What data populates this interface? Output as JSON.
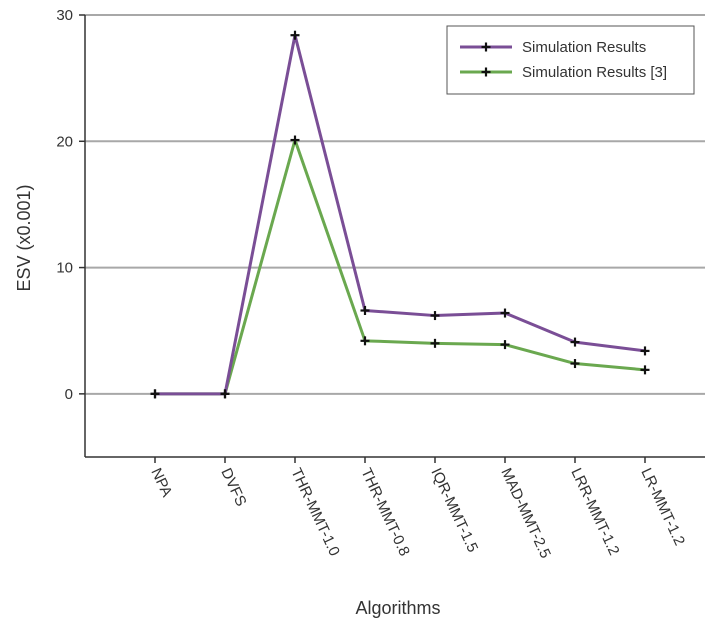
{
  "chart_data": {
    "type": "line",
    "title": "",
    "xlabel": "Algorithms",
    "ylabel": "ESV (x0.001)",
    "categories": [
      "NPA",
      "DVFS",
      "THR-MMT-1.0",
      "THR-MMT-0.8",
      "IQR-MMT-1.5",
      "MAD-MMT-2.5",
      "LRR-MMT-1.2",
      "LR-MMT-1.2"
    ],
    "series": [
      {
        "name": "Simulation Results",
        "color": "#7a4e96",
        "values": [
          0,
          0,
          28.4,
          6.6,
          6.2,
          6.4,
          4.1,
          3.4
        ]
      },
      {
        "name": "Simulation Results [3]",
        "color": "#6aa84f",
        "values": [
          0,
          0,
          20.1,
          4.2,
          4.0,
          3.9,
          2.4,
          1.9
        ]
      }
    ],
    "yticks": [
      0,
      10,
      20,
      30
    ],
    "ylim": [
      -5,
      30
    ],
    "grid": true,
    "legend": "top-right"
  }
}
